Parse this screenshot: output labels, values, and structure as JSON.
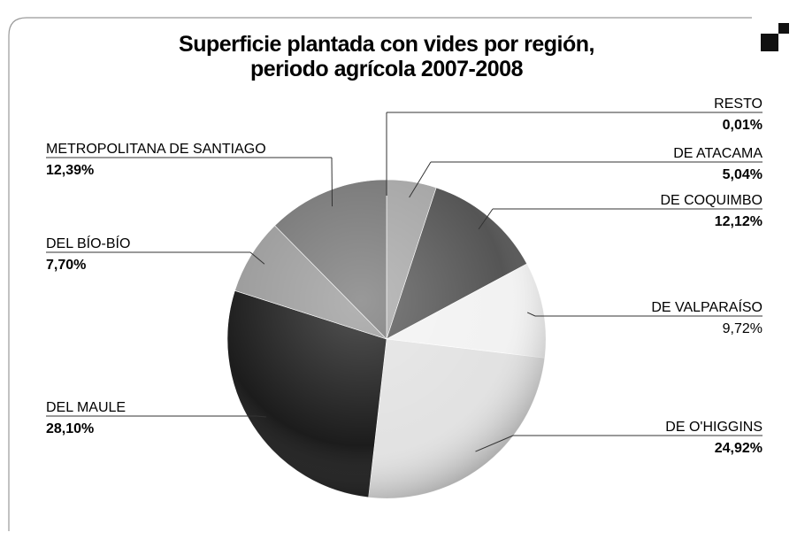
{
  "chart_data": {
    "type": "pie",
    "title": "Superficie plantada con vides por región, periodo agrícola 2007-2008",
    "categories": [
      "RESTO",
      "DE  ATACAMA",
      "DE  COQUIMBO",
      "DE  VALPARAÍSO",
      "DE O'HIGGINS",
      "DEL MAULE",
      "DEL BÍO-BÍO",
      "METROPOLITANA DE SANTIAGO"
    ],
    "values": [
      0.01,
      5.04,
      12.12,
      9.72,
      24.92,
      28.1,
      7.7,
      12.39
    ],
    "value_labels": [
      "0,01%",
      "5,04%",
      "12,12%",
      "9,72%",
      "24,92%",
      "28,10%",
      "7,70%",
      "12,39%"
    ],
    "colors": [
      "#bdbdbd",
      "#a6a6a6",
      "#555555",
      "#f2f2f2",
      "#e2e2e2",
      "#1c1c1c",
      "#9a9a9a",
      "#777777"
    ]
  }
}
